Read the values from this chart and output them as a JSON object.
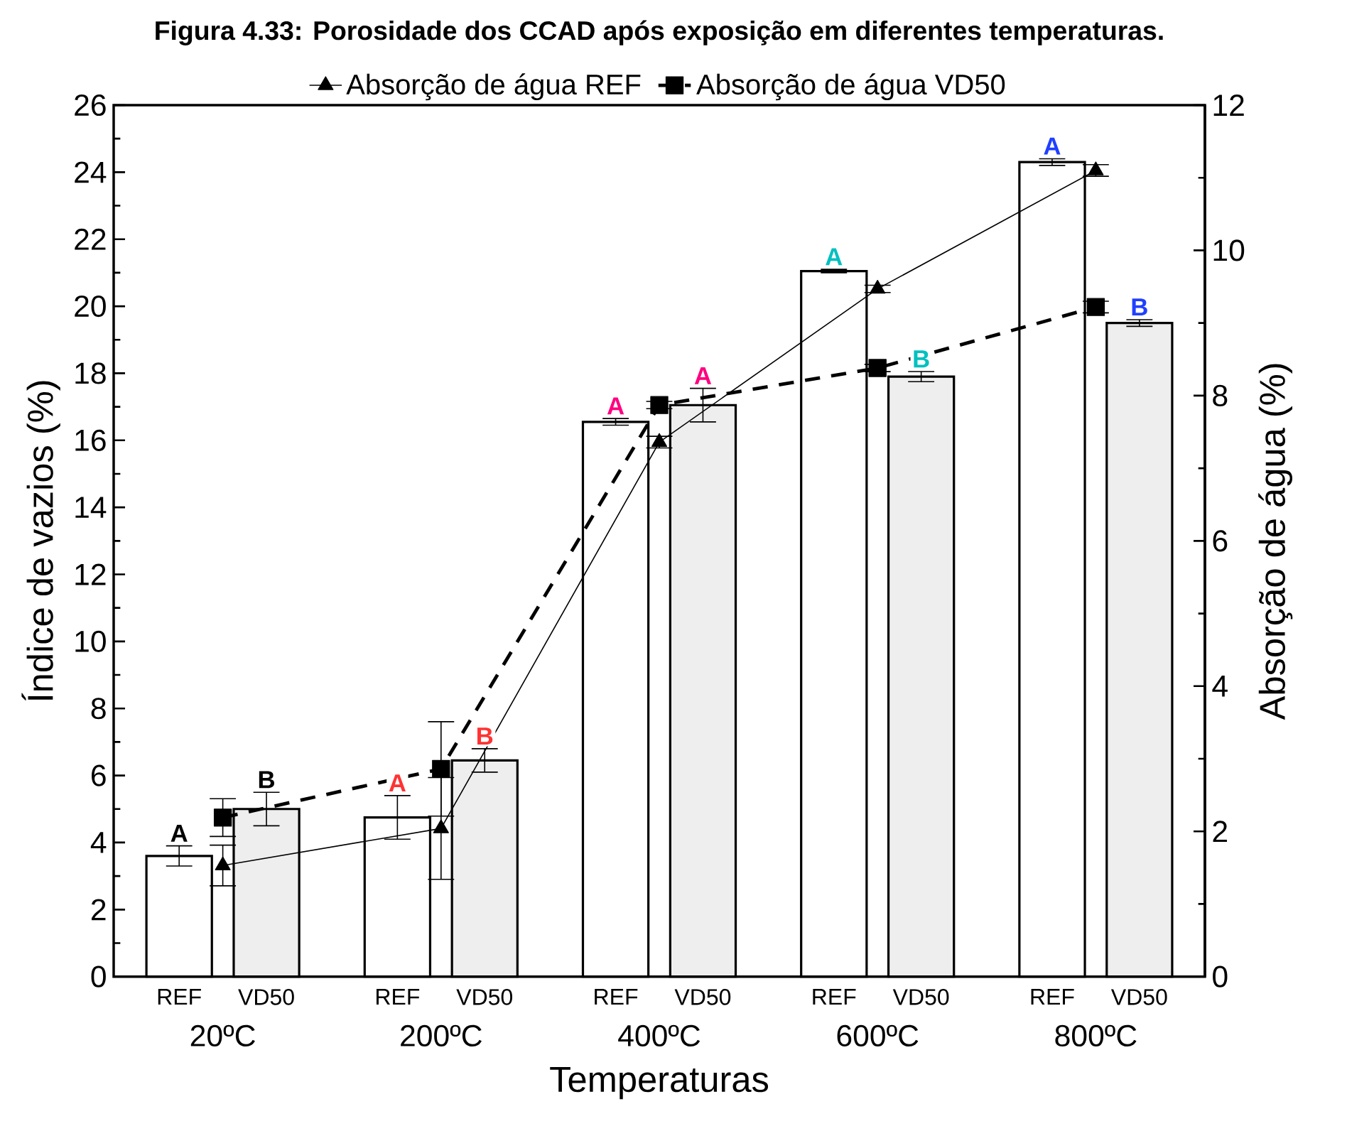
{
  "chart_data": {
    "type": "bar",
    "title": "**Figura 4.33: Porosidade dos CCAD após exposição em diferentes temperaturas.**",
    "xlabel": "Temperaturas",
    "ylabel": "Índice de vazios (%)",
    "y2label": "Absorção de água (%)",
    "categories": [
      "20ºC",
      "200ºC",
      "400ºC",
      "600ºC",
      "800ºC"
    ],
    "series": [
      {
        "name": "REF",
        "color": "#000000",
        "values": [
          3.6,
          4.75,
          16.55,
          21.05,
          24.3
        ],
        "errors": [
          0.3,
          0.65,
          0.1,
          0.05,
          0.1
        ],
        "value_labels": [
          "A",
          "A",
          "A",
          "A",
          "A"
        ]
      },
      {
        "name": "VD50",
        "color": "#eeeeee",
        "values": [
          5.0,
          6.45,
          17.05,
          17.9,
          19.5
        ],
        "errors": [
          0.5,
          0.35,
          0.5,
          0.15,
          0.1
        ],
        "value_labels": [
          "B",
          "B",
          "A",
          "B",
          "B"
        ]
      },
      {
        "name": "Absorção de água REF",
        "type": "line",
        "axis": "y2",
        "color": "#000000",
        "line_style": "solid",
        "marker": "triangle",
        "values": [
          1.53,
          2.04,
          7.36,
          9.47,
          11.1
        ],
        "errors": [
          0.28,
          0.7,
          0.08,
          0.05,
          0.08
        ]
      },
      {
        "name": "Absorção de água VD50",
        "type": "line",
        "axis": "y2",
        "color": "#000000",
        "line_style": "dashed",
        "marker": "square",
        "values": [
          2.19,
          2.86,
          7.87,
          8.38,
          9.22
        ],
        "errors": [
          0.26,
          0.65,
          0.05,
          0.05,
          0.08
        ]
      }
    ],
    "ylim": [
      0,
      26
    ],
    "yticks": [
      0,
      2,
      4,
      6,
      8,
      10,
      12,
      14,
      16,
      18,
      20,
      22,
      24,
      26
    ],
    "y2lim": [
      0,
      12
    ],
    "y2ticks": [
      0,
      2,
      4,
      6,
      8,
      10,
      12
    ],
    "legend": "top"
  }
}
